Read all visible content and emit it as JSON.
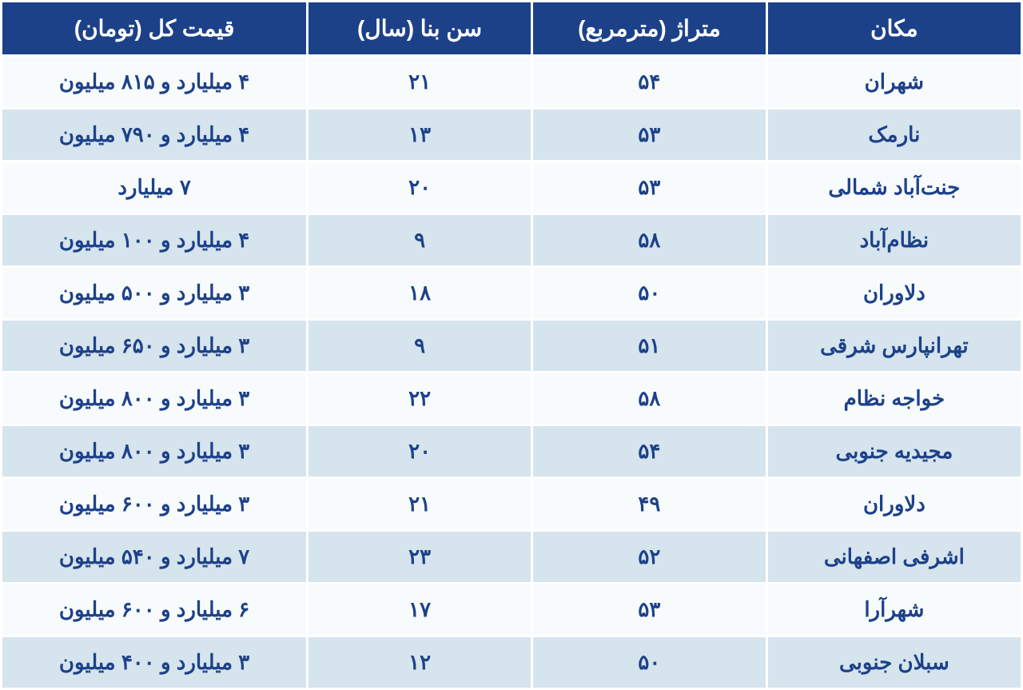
{
  "table": {
    "header_bg": "#1d4189",
    "header_color": "#ffffff",
    "row_odd_bg": "#f8fbfc",
    "row_even_bg": "#d5e4ed",
    "text_color": "#1d4189",
    "columns": [
      {
        "key": "location",
        "label": "مکان"
      },
      {
        "key": "area",
        "label": "متراژ (مترمربع)"
      },
      {
        "key": "age",
        "label": "سن بنا (سال)"
      },
      {
        "key": "price",
        "label": "قیمت کل (تومان)"
      }
    ],
    "rows": [
      {
        "location": "شهران",
        "area": "۵۴",
        "age": "۲۱",
        "price": "۴ میلیارد و ۸۱۵ میلیون"
      },
      {
        "location": "نارمک",
        "area": "۵۳",
        "age": "۱۳",
        "price": "۴ میلیارد و ۷۹۰ میلیون"
      },
      {
        "location": "جنت‌آباد شمالی",
        "area": "۵۳",
        "age": "۲۰",
        "price": "۷ میلیارد"
      },
      {
        "location": "نظام‌آباد",
        "area": "۵۸",
        "age": "۹",
        "price": "۴ میلیارد و ۱۰۰ میلیون"
      },
      {
        "location": "دلاوران",
        "area": "۵۰",
        "age": "۱۸",
        "price": "۳ میلیارد و ۵۰۰ میلیون"
      },
      {
        "location": "تهرانپارس شرقی",
        "area": "۵۱",
        "age": "۹",
        "price": "۳ میلیارد و ۶۵۰ میلیون"
      },
      {
        "location": "خواجه نظام",
        "area": "۵۸",
        "age": "۲۲",
        "price": "۳ میلیارد و ۸۰۰ میلیون"
      },
      {
        "location": "مجیدیه جنوبی",
        "area": "۵۴",
        "age": "۲۰",
        "price": "۳ میلیارد و ۸۰۰ میلیون"
      },
      {
        "location": "دلاوران",
        "area": "۴۹",
        "age": "۲۱",
        "price": "۳ میلیارد و ۶۰۰ میلیون"
      },
      {
        "location": "اشرفی اصفهانی",
        "area": "۵۲",
        "age": "۲۳",
        "price": "۷ میلیارد و ۵۴۰ میلیون"
      },
      {
        "location": "شهرآرا",
        "area": "۵۳",
        "age": "۱۷",
        "price": "۶ میلیارد و ۶۰۰ میلیون"
      },
      {
        "location": "سبلان جنوبی",
        "area": "۵۰",
        "age": "۱۲",
        "price": "۳ میلیارد و ۴۰۰ میلیون"
      }
    ]
  }
}
